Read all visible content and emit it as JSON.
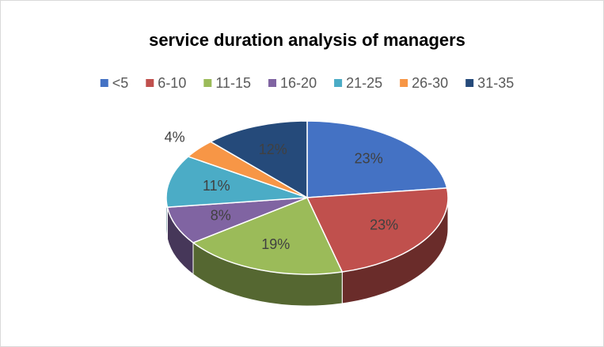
{
  "chart_data": {
    "type": "pie",
    "title": "service duration analysis of managers",
    "categories": [
      "<5",
      "6-10",
      "11-15",
      "16-20",
      "21-25",
      "26-30",
      "31-35"
    ],
    "values": [
      23,
      23,
      19,
      8,
      11,
      4,
      12
    ],
    "value_labels": [
      "23%",
      "23%",
      "19%",
      "8%",
      "11%",
      "4%",
      "12%"
    ],
    "colors": [
      "#4472c4",
      "#c0504d",
      "#9bbb59",
      "#8064a2",
      "#4bacc6",
      "#f79646",
      "#254a7a"
    ],
    "legend": "top"
  }
}
